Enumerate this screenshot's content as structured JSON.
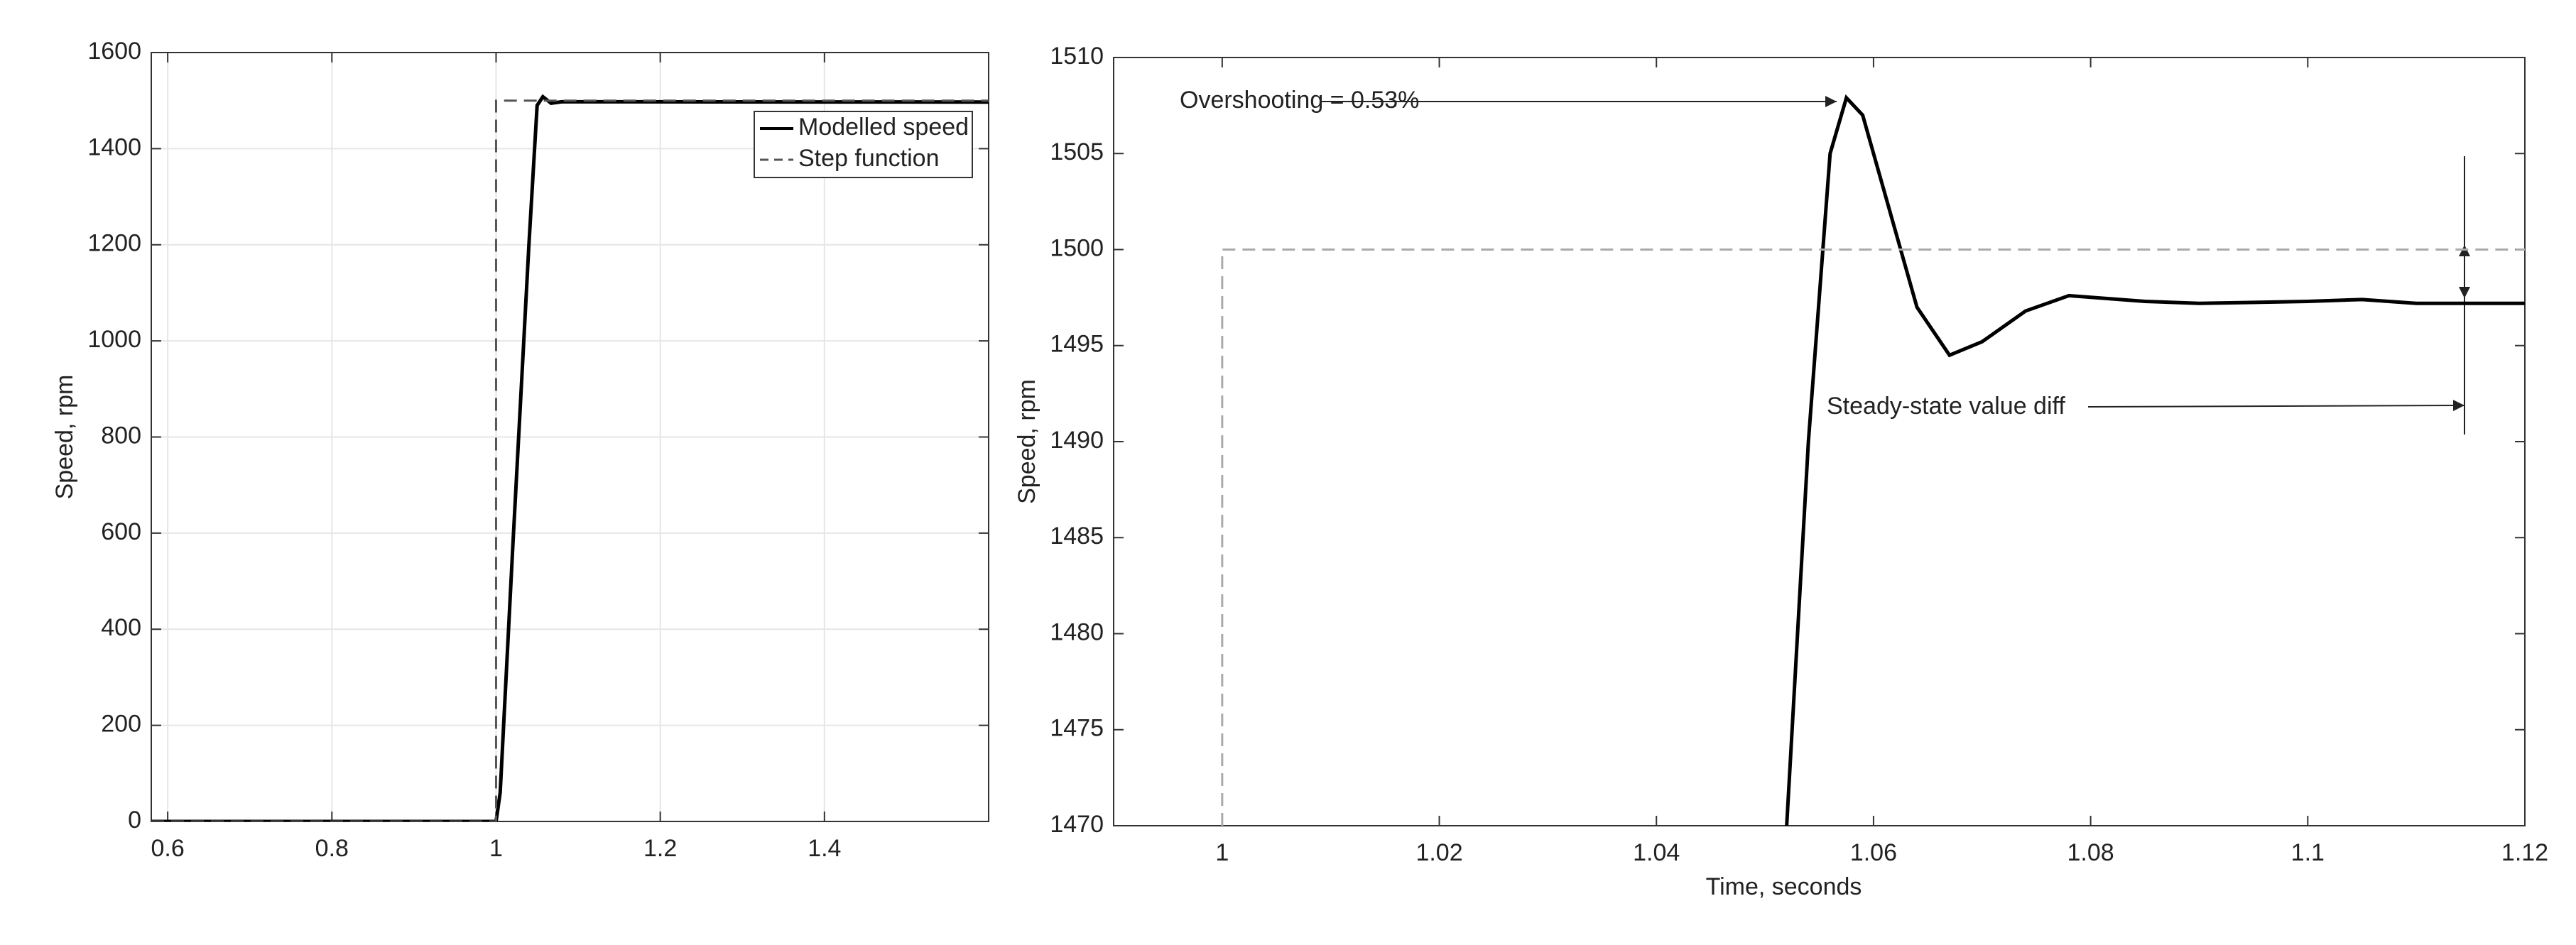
{
  "chart_data": [
    {
      "type": "line",
      "ylabel": "Speed, rpm",
      "xlim": [
        0.58,
        1.6
      ],
      "xticks": [
        0.6,
        0.8,
        1,
        1.2,
        1.4
      ],
      "ylim": [
        0,
        1600
      ],
      "yticks": [
        0,
        200,
        400,
        600,
        800,
        1000,
        1200,
        1400,
        1600
      ],
      "grid": true,
      "legend": "northeast",
      "series": [
        {
          "name": "Modelled speed",
          "color": "#000000",
          "dash": false,
          "x": [
            0.58,
            1.0,
            1.005,
            1.02,
            1.04,
            1.05,
            1.057,
            1.067,
            1.08,
            1.6
          ],
          "values": [
            0,
            0,
            60,
            560,
            1200,
            1490,
            1508,
            1494.5,
            1497.5,
            1497
          ]
        },
        {
          "name": "Step function",
          "color": "#555555",
          "dash": true,
          "x": [
            0.58,
            1.0,
            1.0,
            1.6
          ],
          "values": [
            0,
            0,
            1500,
            1500
          ]
        }
      ]
    },
    {
      "type": "line",
      "xlabel": "Time, seconds",
      "ylabel": "Speed, rpm",
      "xlim": [
        0.99,
        1.12
      ],
      "xticks": [
        1,
        1.02,
        1.04,
        1.06,
        1.08,
        1.1,
        1.12
      ],
      "ylim": [
        1470,
        1510
      ],
      "yticks": [
        1470,
        1475,
        1480,
        1485,
        1490,
        1495,
        1500,
        1505,
        1510
      ],
      "grid": false,
      "annotations": [
        "Overshooting = 0.53%",
        "Steady-state value diff"
      ],
      "series": [
        {
          "name": "Modelled speed",
          "color": "#000000",
          "dash": false,
          "x": [
            1.052,
            1.054,
            1.056,
            1.0575,
            1.059,
            1.061,
            1.064,
            1.067,
            1.07,
            1.074,
            1.078,
            1.085,
            1.09,
            1.1,
            1.105,
            1.11,
            1.12
          ],
          "values": [
            1470,
            1490,
            1505,
            1507.9,
            1507,
            1503,
            1497,
            1494.5,
            1495.2,
            1496.8,
            1497.6,
            1497.3,
            1497.2,
            1497.3,
            1497.4,
            1497.2,
            1497.2
          ]
        },
        {
          "name": "Step function",
          "color": "#aaaaaa",
          "dash": true,
          "x": [
            1,
            1,
            1.12
          ],
          "values": [
            1470,
            1500,
            1500
          ]
        }
      ]
    }
  ]
}
